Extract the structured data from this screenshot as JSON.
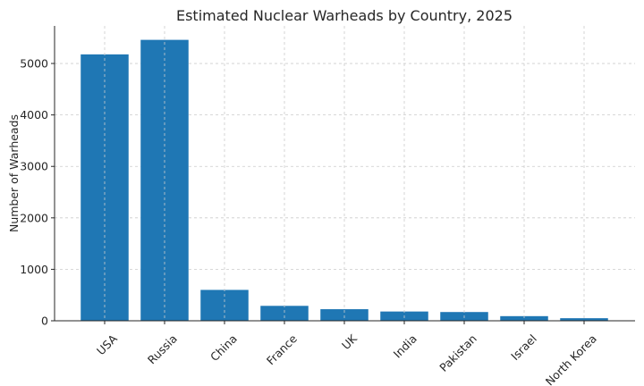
{
  "chart_data": {
    "type": "bar",
    "title": "Estimated Nuclear Warheads by Country, 2025",
    "xlabel": "",
    "ylabel": "Number of Warheads",
    "categories": [
      "USA",
      "Russia",
      "China",
      "France",
      "UK",
      "India",
      "Pakistan",
      "Israel",
      "North Korea"
    ],
    "values": [
      5177,
      5459,
      600,
      290,
      225,
      180,
      170,
      90,
      50
    ],
    "ylim": [
      0,
      5730
    ],
    "yticks": [
      0,
      1000,
      2000,
      3000,
      4000,
      5000
    ],
    "bar_color": "#1f77b4",
    "grid": true,
    "legend": "none"
  }
}
